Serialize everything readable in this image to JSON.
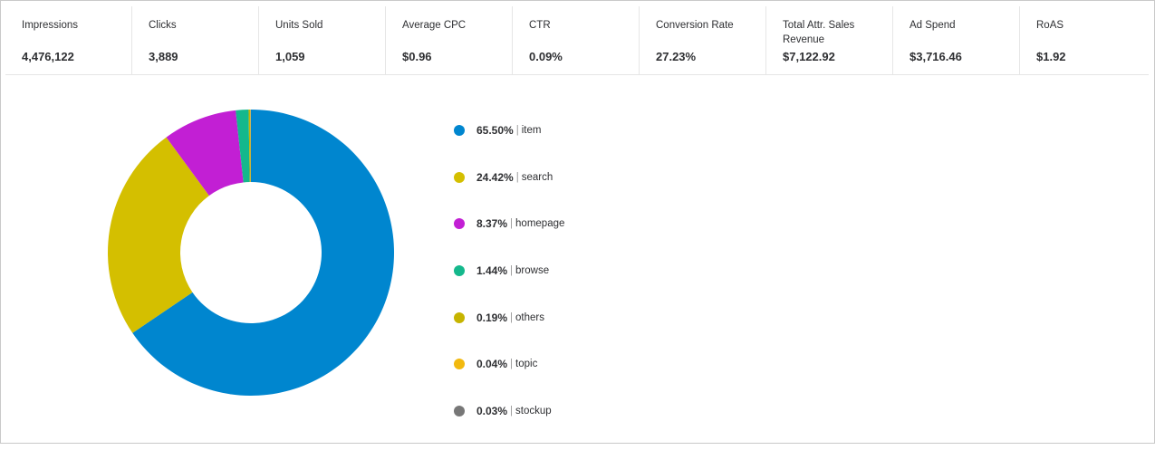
{
  "metrics": [
    {
      "label": "Impressions",
      "value": "4,476,122"
    },
    {
      "label": "Clicks",
      "value": "3,889"
    },
    {
      "label": "Units Sold",
      "value": "1,059"
    },
    {
      "label": "Average CPC",
      "value": "$0.96"
    },
    {
      "label": "CTR",
      "value": "0.09%"
    },
    {
      "label": "Conversion Rate",
      "value": "27.23%"
    },
    {
      "label": "Total Attr. Sales Revenue",
      "value": "$7,122.92"
    },
    {
      "label": "Ad Spend",
      "value": "$3,716.46"
    },
    {
      "label": "RoAS",
      "value": "$1.92"
    }
  ],
  "chart_data": {
    "type": "pie",
    "donut": true,
    "categories": [
      "item",
      "search",
      "homepage",
      "browse",
      "others",
      "topic",
      "stockup"
    ],
    "values": [
      65.5,
      24.42,
      8.37,
      1.44,
      0.19,
      0.04,
      0.03
    ],
    "value_labels": [
      "65.50%",
      "24.42%",
      "8.37%",
      "1.44%",
      "0.19%",
      "0.04%",
      "0.03%"
    ],
    "colors": [
      "#0086cf",
      "#d4bf00",
      "#c21fd4",
      "#14b88c",
      "#c6b400",
      "#f2b90f",
      "#777777"
    ],
    "legend_placement": "right"
  }
}
